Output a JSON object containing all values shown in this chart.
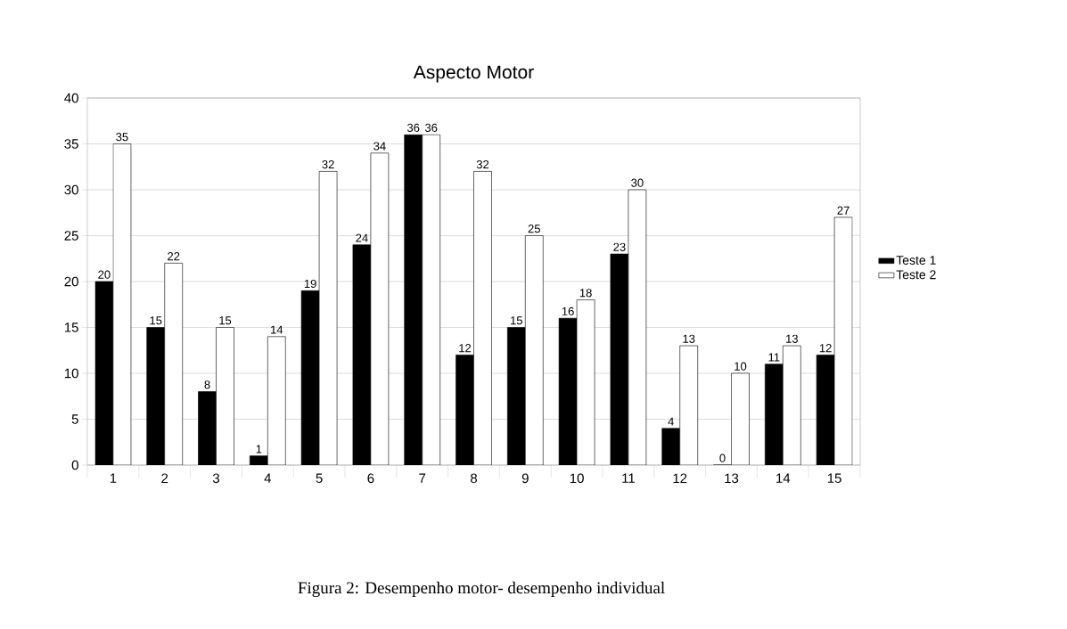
{
  "chart_data": {
    "type": "bar",
    "title": "Aspecto Motor",
    "annotations": [
      "Figura 2: Desempenho motor- desempenho individual"
    ],
    "categories": [
      "1",
      "2",
      "3",
      "4",
      "5",
      "6",
      "7",
      "8",
      "9",
      "10",
      "11",
      "12",
      "13",
      "14",
      "15"
    ],
    "series": [
      {
        "name": "Teste 1",
        "color": "#000000",
        "values": [
          20,
          15,
          8,
          1,
          19,
          24,
          36,
          12,
          15,
          16,
          23,
          4,
          0,
          11,
          12
        ]
      },
      {
        "name": "Teste 2",
        "color": "#ffffff",
        "values": [
          35,
          22,
          15,
          14,
          32,
          34,
          36,
          32,
          25,
          18,
          30,
          13,
          10,
          13,
          27
        ]
      }
    ],
    "ylim": [
      0,
      40
    ],
    "yticks": [
      0,
      5,
      10,
      15,
      20,
      25,
      30,
      35,
      40
    ],
    "grid": "y",
    "legend": "right",
    "data_labels": true
  }
}
